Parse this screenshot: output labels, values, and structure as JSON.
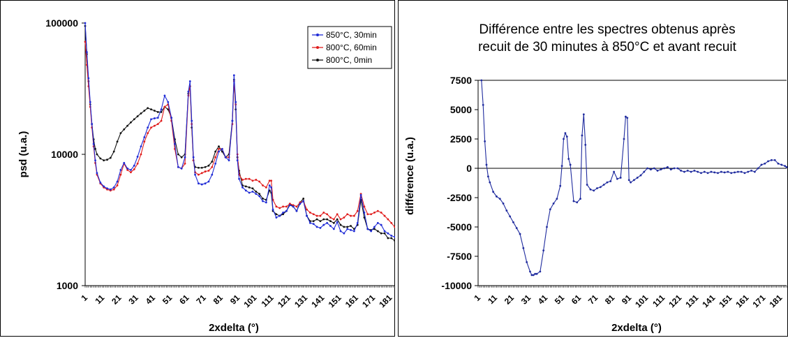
{
  "chart_data": [
    {
      "type": "line",
      "title": "",
      "xlabel": "2xdelta (°)",
      "ylabel": "psd (u.a.)",
      "yscale": "log",
      "ylim": [
        1000,
        100000
      ],
      "xlim": [
        1,
        185
      ],
      "x_ticks": [
        "1",
        "11",
        "21",
        "31",
        "41",
        "51",
        "61",
        "71",
        "81",
        "91",
        "101",
        "111",
        "121",
        "131",
        "141",
        "151",
        "161",
        "171",
        "181"
      ],
      "y_ticks": [
        "1000",
        "10000",
        "100000"
      ],
      "legend_position": "top-right",
      "series": [
        {
          "name": "850°C, 30min",
          "color": "#1f2bd6",
          "x": [
            1,
            2,
            3,
            4,
            5,
            6,
            7,
            8,
            10,
            12,
            14,
            16,
            18,
            20,
            22,
            24,
            26,
            28,
            30,
            32,
            34,
            36,
            38,
            40,
            42,
            44,
            46,
            48,
            50,
            52,
            54,
            56,
            58,
            60,
            62,
            63,
            64,
            65,
            66,
            68,
            70,
            72,
            74,
            76,
            78,
            80,
            82,
            84,
            86,
            88,
            89,
            90,
            91,
            92,
            94,
            96,
            98,
            100,
            102,
            104,
            106,
            108,
            110,
            111,
            112,
            114,
            116,
            118,
            120,
            122,
            124,
            126,
            128,
            130,
            132,
            134,
            136,
            138,
            140,
            142,
            144,
            146,
            148,
            150,
            152,
            154,
            156,
            158,
            160,
            162,
            164,
            166,
            168,
            170,
            172,
            174,
            176,
            178,
            180,
            182,
            184,
            185
          ],
          "values": [
            100000,
            60000,
            38000,
            25000,
            17000,
            12000,
            9000,
            7200,
            6100,
            5700,
            5500,
            5400,
            5600,
            6200,
            7600,
            8600,
            7800,
            7600,
            8200,
            9600,
            11500,
            13500,
            16000,
            18500,
            18800,
            19000,
            22000,
            28000,
            25000,
            19000,
            12000,
            8000,
            7800,
            9500,
            30000,
            36000,
            18000,
            9500,
            7000,
            6000,
            5900,
            6000,
            6200,
            7000,
            8500,
            10500,
            11000,
            9500,
            9000,
            18000,
            40000,
            25000,
            9000,
            6500,
            5600,
            5300,
            5100,
            5200,
            5000,
            4800,
            4400,
            4300,
            5800,
            5600,
            3800,
            3300,
            3400,
            3600,
            3700,
            4100,
            4000,
            3700,
            4200,
            4400,
            3400,
            3000,
            2950,
            2800,
            2750,
            2900,
            3000,
            2850,
            2700,
            3050,
            2600,
            2500,
            2700,
            2650,
            2600,
            3000,
            4900,
            3600,
            2700,
            2600,
            2800,
            3000,
            2900,
            2600,
            2500,
            2400,
            2350,
            2350
          ]
        },
        {
          "name": "800°C, 60min",
          "color": "#e01c1c",
          "x": [
            1,
            2,
            3,
            4,
            5,
            6,
            7,
            8,
            10,
            12,
            14,
            16,
            18,
            20,
            22,
            24,
            26,
            28,
            30,
            32,
            34,
            36,
            38,
            40,
            42,
            44,
            46,
            48,
            50,
            52,
            54,
            56,
            58,
            60,
            62,
            63,
            64,
            65,
            66,
            68,
            70,
            72,
            74,
            76,
            78,
            80,
            82,
            84,
            86,
            88,
            89,
            90,
            91,
            92,
            94,
            96,
            98,
            100,
            102,
            104,
            106,
            108,
            110,
            111,
            112,
            114,
            116,
            118,
            120,
            122,
            124,
            126,
            128,
            130,
            132,
            134,
            136,
            138,
            140,
            142,
            144,
            146,
            148,
            150,
            152,
            154,
            156,
            158,
            160,
            162,
            164,
            166,
            168,
            170,
            172,
            174,
            176,
            178,
            180,
            182,
            184,
            185
          ],
          "values": [
            72000,
            48000,
            33000,
            23000,
            16000,
            11500,
            8600,
            7000,
            6000,
            5600,
            5400,
            5300,
            5400,
            5800,
            7000,
            8500,
            7600,
            7300,
            7700,
            8500,
            10000,
            12500,
            14500,
            16000,
            16500,
            17000,
            18000,
            23000,
            24000,
            18000,
            11000,
            8000,
            7800,
            8500,
            28000,
            33000,
            17000,
            9000,
            7300,
            7000,
            7200,
            7400,
            7500,
            8000,
            9500,
            11000,
            11000,
            9500,
            9500,
            17000,
            36000,
            24000,
            10000,
            7000,
            6400,
            6500,
            6500,
            6300,
            6400,
            6200,
            5800,
            5600,
            6300,
            6300,
            4500,
            4000,
            3900,
            4000,
            4000,
            4200,
            4100,
            4000,
            4300,
            4400,
            3800,
            3600,
            3500,
            3400,
            3400,
            3600,
            3500,
            3300,
            3200,
            3500,
            3200,
            3300,
            3500,
            3400,
            3400,
            3700,
            5000,
            4000,
            3500,
            3500,
            3600,
            3700,
            3600,
            3400,
            3200,
            3000,
            2800,
            2750
          ]
        },
        {
          "name": "800°C, 0min",
          "color": "#111111",
          "x": [
            1,
            2,
            3,
            4,
            5,
            6,
            7,
            8,
            10,
            12,
            14,
            16,
            18,
            20,
            22,
            24,
            26,
            28,
            30,
            32,
            34,
            36,
            38,
            40,
            42,
            44,
            46,
            48,
            50,
            52,
            54,
            56,
            58,
            60,
            62,
            63,
            64,
            65,
            66,
            68,
            70,
            72,
            74,
            76,
            78,
            80,
            82,
            84,
            86,
            88,
            89,
            90,
            91,
            92,
            94,
            96,
            98,
            100,
            102,
            104,
            106,
            108,
            110,
            111,
            112,
            114,
            116,
            118,
            120,
            122,
            124,
            126,
            128,
            130,
            132,
            134,
            136,
            138,
            140,
            142,
            144,
            146,
            148,
            150,
            152,
            154,
            156,
            158,
            160,
            162,
            164,
            166,
            168,
            170,
            172,
            174,
            176,
            178,
            180,
            182,
            184,
            185
          ],
          "values": [
            95000,
            58000,
            36000,
            24000,
            17000,
            13000,
            11000,
            10000,
            9300,
            9000,
            9100,
            9400,
            10500,
            12500,
            14500,
            15500,
            16500,
            17500,
            18500,
            19500,
            20500,
            21500,
            22500,
            22000,
            21500,
            21000,
            21000,
            23000,
            22000,
            19000,
            13000,
            10000,
            9500,
            10000,
            29000,
            33000,
            16000,
            9000,
            8000,
            7900,
            7900,
            8000,
            8200,
            8800,
            10500,
            11500,
            10500,
            9500,
            10000,
            18000,
            37000,
            22000,
            9500,
            7500,
            5800,
            5700,
            5600,
            5500,
            5200,
            5000,
            4600,
            4500,
            5300,
            5100,
            3700,
            3500,
            3400,
            3500,
            3700,
            4200,
            4000,
            3700,
            4300,
            4600,
            3400,
            3100,
            3100,
            3200,
            3100,
            3200,
            3200,
            3100,
            3000,
            3200,
            2900,
            2800,
            2800,
            2850,
            2700,
            2900,
            4500,
            3300,
            2700,
            2650,
            2700,
            2600,
            2500,
            2500,
            2300,
            2300,
            2200,
            2200
          ]
        }
      ]
    },
    {
      "type": "line",
      "title": "Différence entre les spectres obtenus après recuit de 30 minutes à 850°C et avant recuit",
      "title_lines": [
        "Différence entre les spectres obtenus après",
        "recuit de 30 minutes à 850°C et avant recuit"
      ],
      "xlabel": "2xdelta (°)",
      "ylabel": "différence (u.a.)",
      "ylim": [
        -10000,
        7500
      ],
      "xlim": [
        1,
        185
      ],
      "x_ticks": [
        "1",
        "11",
        "21",
        "31",
        "41",
        "51",
        "61",
        "71",
        "81",
        "91",
        "101",
        "111",
        "121",
        "131",
        "141",
        "151",
        "161",
        "171",
        "181"
      ],
      "y_ticks": [
        "7500",
        "5000",
        "2500",
        "0",
        "-2500",
        "-5000",
        "-7500",
        "-10000"
      ],
      "series": [
        {
          "name": "",
          "color": "#1f2b9e",
          "x": [
            3,
            4,
            5,
            6,
            7,
            8,
            10,
            12,
            14,
            16,
            18,
            20,
            22,
            24,
            26,
            28,
            30,
            32,
            33,
            34,
            35,
            36,
            38,
            40,
            42,
            44,
            46,
            48,
            50,
            51,
            52,
            53,
            54,
            55,
            56,
            58,
            60,
            62,
            63,
            64,
            65,
            66,
            68,
            70,
            72,
            74,
            76,
            78,
            80,
            82,
            84,
            86,
            88,
            89,
            90,
            91,
            92,
            94,
            96,
            98,
            100,
            102,
            104,
            106,
            108,
            110,
            112,
            114,
            116,
            118,
            120,
            122,
            124,
            126,
            128,
            130,
            132,
            134,
            136,
            138,
            140,
            142,
            144,
            146,
            148,
            150,
            152,
            154,
            156,
            158,
            160,
            162,
            164,
            166,
            168,
            170,
            172,
            174,
            176,
            178,
            180,
            182,
            184,
            185
          ],
          "values": [
            7500,
            5400,
            2300,
            300,
            -700,
            -1200,
            -2000,
            -2400,
            -2600,
            -3000,
            -3600,
            -4100,
            -4600,
            -5100,
            -5600,
            -6800,
            -8000,
            -8800,
            -9100,
            -9100,
            -9000,
            -9000,
            -8800,
            -7000,
            -5000,
            -3500,
            -3000,
            -2600,
            -1500,
            200,
            2500,
            3000,
            2700,
            800,
            300,
            -2800,
            -2900,
            -2600,
            2800,
            4600,
            2000,
            -1400,
            -1800,
            -1900,
            -1700,
            -1600,
            -1400,
            -1200,
            -1100,
            -300,
            -900,
            -800,
            2500,
            4400,
            4300,
            -1000,
            -1200,
            -1000,
            -800,
            -600,
            -300,
            0,
            -100,
            0,
            -200,
            -100,
            0,
            100,
            -100,
            0,
            0,
            -200,
            -300,
            -200,
            -300,
            -200,
            -300,
            -400,
            -300,
            -400,
            -300,
            -350,
            -400,
            -300,
            -350,
            -300,
            -400,
            -350,
            -300,
            -300,
            -400,
            -300,
            -200,
            -300,
            0,
            300,
            400,
            600,
            700,
            700,
            400,
            300,
            200,
            100
          ]
        }
      ]
    }
  ]
}
